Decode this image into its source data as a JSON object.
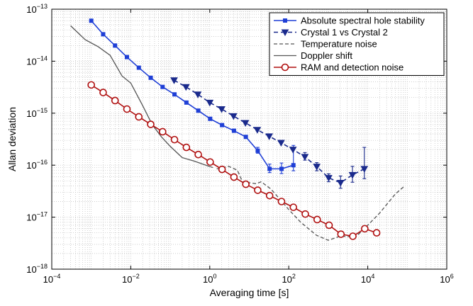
{
  "chart_data": {
    "type": "line",
    "xscale": "log",
    "yscale": "log",
    "xlim": [
      0.0001,
      1000000
    ],
    "ylim": [
      1e-18,
      1e-13
    ],
    "xlabel": "Averaging time [s]",
    "ylabel": "Allan deviation",
    "grid": true,
    "legend_position": "top-right",
    "x_ticks": [
      {
        "value": 0.0001,
        "base": "10",
        "exp": "−4"
      },
      {
        "value": 0.01,
        "base": "10",
        "exp": "−2"
      },
      {
        "value": 1,
        "base": "10",
        "exp": "0"
      },
      {
        "value": 100,
        "base": "10",
        "exp": "2"
      },
      {
        "value": 10000,
        "base": "10",
        "exp": "4"
      },
      {
        "value": 1000000,
        "base": "10",
        "exp": "6"
      }
    ],
    "y_ticks": [
      {
        "value": 1e-18,
        "base": "10",
        "exp": "−18"
      },
      {
        "value": 1e-17,
        "base": "10",
        "exp": "−17"
      },
      {
        "value": 1e-16,
        "base": "10",
        "exp": "−16"
      },
      {
        "value": 1e-15,
        "base": "10",
        "exp": "−15"
      },
      {
        "value": 1e-14,
        "base": "10",
        "exp": "−14"
      },
      {
        "value": 1e-13,
        "base": "10",
        "exp": "−13"
      }
    ],
    "series": [
      {
        "name": "Absolute spectral hole stability",
        "color": "#1f3fd6",
        "line_style": "solid",
        "marker": "square",
        "x": [
          0.001,
          0.002,
          0.004,
          0.008,
          0.016,
          0.032,
          0.064,
          0.128,
          0.256,
          0.512,
          1.024,
          2.048,
          4.096,
          8.192,
          16.38,
          32.77,
          65.54,
          131.1
        ],
        "y": [
          6e-14,
          3.3e-14,
          2e-14,
          1.2e-14,
          7.5e-15,
          4.8e-15,
          3.2e-15,
          2.3e-15,
          1.6e-15,
          1.12e-15,
          7.8e-16,
          5.9e-16,
          4.6e-16,
          3.5e-16,
          1.9e-16,
          8.5e-17,
          8.5e-17,
          1e-16
        ],
        "error_bars": [
          {
            "x": 16.38,
            "low": 1.7e-16,
            "high": 2.2e-16
          },
          {
            "x": 32.77,
            "low": 7.2e-17,
            "high": 1.05e-16
          },
          {
            "x": 65.54,
            "low": 6.9e-17,
            "high": 1.1e-16
          },
          {
            "x": 131.1,
            "low": 7.8e-17,
            "high": 2.4e-16
          }
        ]
      },
      {
        "name": "Crystal 1 vs Crystal 2",
        "color": "#1a2a8c",
        "line_style": "dashed",
        "marker": "triangle-down",
        "x": [
          0.125,
          0.25,
          0.5,
          1,
          2,
          4,
          8,
          16,
          32,
          64,
          128,
          256,
          512,
          1024,
          2048,
          4096,
          8192
        ],
        "y": [
          4.3e-15,
          3.2e-15,
          2.3e-15,
          1.6e-15,
          1.2e-15,
          8.8e-16,
          6.5e-16,
          4.8e-16,
          3.6e-16,
          2.7e-16,
          2e-16,
          1.45e-16,
          9.4e-17,
          5.7e-17,
          4.6e-17,
          6.5e-17,
          8.5e-17
        ],
        "error_bars": [
          {
            "x": 256,
            "low": 1.25e-16,
            "high": 1.75e-16
          },
          {
            "x": 512,
            "low": 7.8e-17,
            "high": 1.12e-16
          },
          {
            "x": 1024,
            "low": 4.8e-17,
            "high": 6.8e-17
          },
          {
            "x": 2048,
            "low": 3.6e-17,
            "high": 6.2e-17
          },
          {
            "x": 4096,
            "low": 4.7e-17,
            "high": 9.5e-17
          },
          {
            "x": 8192,
            "low": 5.5e-17,
            "high": 2.2e-16
          }
        ]
      },
      {
        "name": "Temperature noise",
        "color": "#555555",
        "line_style": "dashed",
        "marker": "none",
        "x": [
          1.5,
          3,
          5,
          7,
          10,
          15,
          20,
          35,
          60,
          100,
          200,
          500,
          1000,
          2000,
          5000,
          10000,
          20000,
          50000,
          80000
        ],
        "y": [
          8.5e-17,
          9.5e-17,
          8e-17,
          4.5e-17,
          4.6e-17,
          4.4e-17,
          4.8e-17,
          3.5e-17,
          2.2e-17,
          1.4e-17,
          8e-18,
          4.5e-18,
          3.6e-18,
          4.3e-18,
          4.2e-18,
          7e-18,
          1.2e-17,
          2.8e-17,
          3.8e-17
        ]
      },
      {
        "name": "Doppler shift",
        "color": "#555555",
        "line_style": "solid",
        "marker": "none",
        "x": [
          0.0003,
          0.0007,
          0.0015,
          0.003,
          0.006,
          0.01,
          0.02,
          0.035,
          0.06,
          0.1,
          0.2,
          0.4,
          0.8,
          1.2
        ],
        "y": [
          4.8e-14,
          2.6e-14,
          1.9e-14,
          1.3e-14,
          5.2e-15,
          3.8e-15,
          1.4e-15,
          6e-16,
          3.5e-16,
          2.3e-16,
          1.4e-16,
          1.2e-16,
          1e-16,
          9e-17
        ]
      },
      {
        "name": "RAM and detection noise",
        "color": "#b01010",
        "line_style": "solid",
        "marker": "circle",
        "x": [
          0.001,
          0.002,
          0.004,
          0.008,
          0.016,
          0.032,
          0.064,
          0.128,
          0.256,
          0.512,
          1.024,
          2.048,
          4.096,
          8.192,
          16.38,
          32.77,
          65.54,
          131.1,
          262.1,
          524.3,
          1049,
          2097,
          4194,
          8389,
          16780
        ],
        "y": [
          3.5e-15,
          2.5e-15,
          1.75e-15,
          1.2e-15,
          8.5e-16,
          6.1e-16,
          4.4e-16,
          3.1e-16,
          2.2e-16,
          1.6e-16,
          1.15e-16,
          8.3e-17,
          5.9e-17,
          4.3e-17,
          3.3e-17,
          2.6e-17,
          2e-17,
          1.55e-17,
          1.15e-17,
          9e-18,
          7e-18,
          4.7e-18,
          4.3e-18,
          6e-18,
          5e-18
        ]
      }
    ]
  }
}
